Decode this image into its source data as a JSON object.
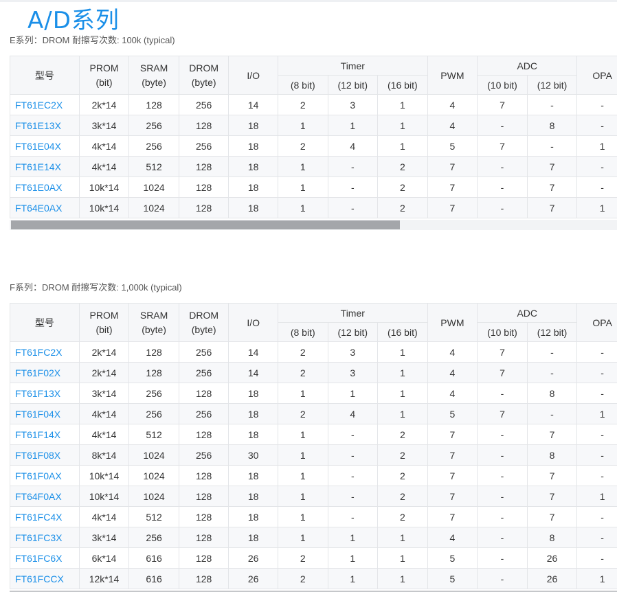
{
  "page_title": "A/D系列",
  "header": {
    "model": "型号",
    "prom": "PROM",
    "prom_unit": "(bit)",
    "sram": "SRAM",
    "sram_unit": "(byte)",
    "drom": "DROM",
    "drom_unit": "(byte)",
    "io": "I/O",
    "timer": "Timer",
    "t8": "(8 bit)",
    "t12": "(12 bit)",
    "t16": "(16 bit)",
    "pwm": "PWM",
    "adc": "ADC",
    "a10": "(10 bit)",
    "a12": "(12 bit)",
    "opa": "OPA"
  },
  "tables": [
    {
      "caption": "E系列：DROM 耐擦写次数: 100k (typical)",
      "rows": [
        [
          "FT61EC2X",
          "2k*14",
          "128",
          "256",
          "14",
          "2",
          "3",
          "1",
          "4",
          "7",
          "-",
          "-"
        ],
        [
          "FT61E13X",
          "3k*14",
          "256",
          "128",
          "18",
          "1",
          "1",
          "1",
          "4",
          "-",
          "8",
          "-"
        ],
        [
          "FT61E04X",
          "4k*14",
          "256",
          "256",
          "18",
          "2",
          "4",
          "1",
          "5",
          "7",
          "-",
          "1"
        ],
        [
          "FT61E14X",
          "4k*14",
          "512",
          "128",
          "18",
          "1",
          "-",
          "2",
          "7",
          "-",
          "7",
          "-"
        ],
        [
          "FT61E0AX",
          "10k*14",
          "1024",
          "128",
          "18",
          "1",
          "-",
          "2",
          "7",
          "-",
          "7",
          "-"
        ],
        [
          "FT64E0AX",
          "10k*14",
          "1024",
          "128",
          "18",
          "1",
          "-",
          "2",
          "7",
          "-",
          "7",
          "1"
        ]
      ]
    },
    {
      "caption": "F系列：DROM 耐擦写次数: 1,000k (typical)",
      "rows": [
        [
          "FT61FC2X",
          "2k*14",
          "128",
          "256",
          "14",
          "2",
          "3",
          "1",
          "4",
          "7",
          "-",
          "-"
        ],
        [
          "FT61F02X",
          "2k*14",
          "128",
          "256",
          "14",
          "2",
          "3",
          "1",
          "4",
          "7",
          "-",
          "-"
        ],
        [
          "FT61F13X",
          "3k*14",
          "256",
          "128",
          "18",
          "1",
          "1",
          "1",
          "4",
          "-",
          "8",
          "-"
        ],
        [
          "FT61F04X",
          "4k*14",
          "256",
          "256",
          "18",
          "2",
          "4",
          "1",
          "5",
          "7",
          "-",
          "1"
        ],
        [
          "FT61F14X",
          "4k*14",
          "512",
          "128",
          "18",
          "1",
          "-",
          "2",
          "7",
          "-",
          "7",
          "-"
        ],
        [
          "FT61F08X",
          "8k*14",
          "1024",
          "256",
          "30",
          "1",
          "-",
          "2",
          "7",
          "-",
          "8",
          "-"
        ],
        [
          "FT61F0AX",
          "10k*14",
          "1024",
          "128",
          "18",
          "1",
          "-",
          "2",
          "7",
          "-",
          "7",
          "-"
        ],
        [
          "FT64F0AX",
          "10k*14",
          "1024",
          "128",
          "18",
          "1",
          "-",
          "2",
          "7",
          "-",
          "7",
          "1"
        ],
        [
          "FT61FC4X",
          "4k*14",
          "512",
          "128",
          "18",
          "1",
          "-",
          "2",
          "7",
          "-",
          "7",
          "-"
        ],
        [
          "FT61FC3X",
          "3k*14",
          "256",
          "128",
          "18",
          "1",
          "1",
          "1",
          "4",
          "-",
          "8",
          "-"
        ],
        [
          "FT61FC6X",
          "6k*14",
          "616",
          "128",
          "26",
          "2",
          "1",
          "1",
          "5",
          "-",
          "26",
          "-"
        ],
        [
          "FT61FCCX",
          "12k*14",
          "616",
          "128",
          "26",
          "2",
          "1",
          "1",
          "5",
          "-",
          "26",
          "1"
        ]
      ]
    }
  ],
  "colors": {
    "accent": "#1a8fe8",
    "header_bg": "#f6f7f9",
    "stripe_bg": "#f7f8fa",
    "border": "#e3e5e8"
  }
}
